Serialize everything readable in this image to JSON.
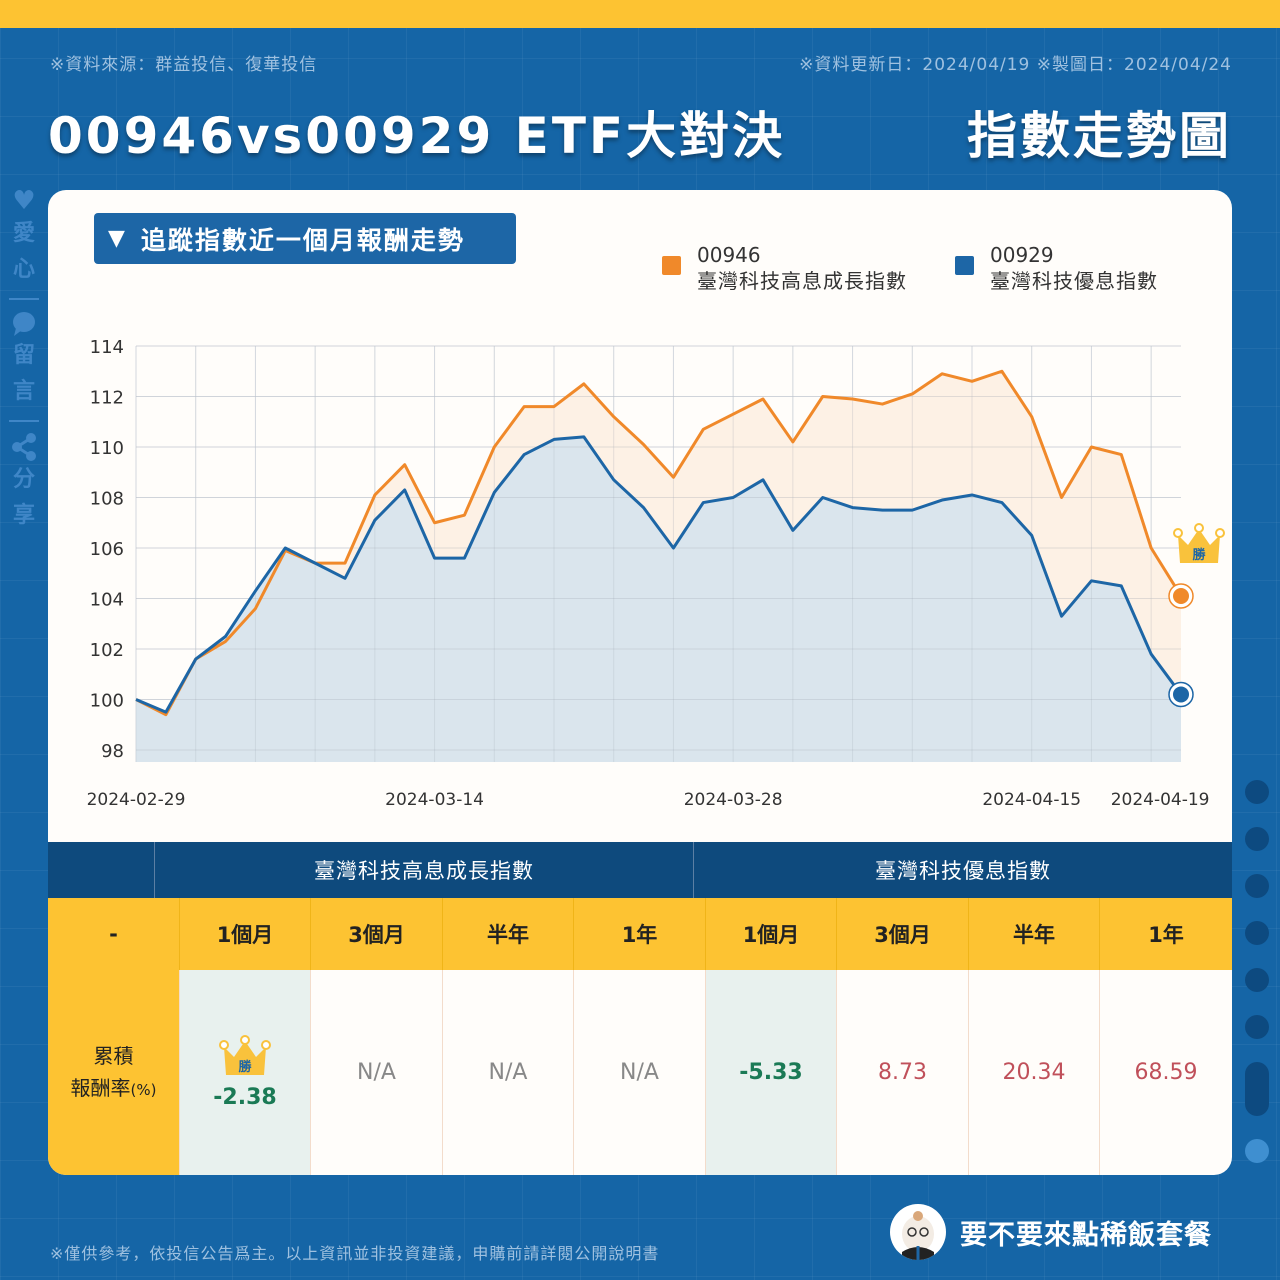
{
  "header": {
    "source": "※資料來源：群益投信、復華投信",
    "dates": "※資料更新日：2024/04/19  ※製圖日：2024/04/24",
    "title": "00946vs00929 ETF大對決",
    "subtitle": "指數走勢圖"
  },
  "side_nav": {
    "like": "愛心",
    "like_chars": [
      "愛",
      "心"
    ],
    "comment_chars": [
      "留",
      "言"
    ],
    "share_chars": [
      "分",
      "享"
    ]
  },
  "section": {
    "label": "追蹤指數近一個月報酬走勢",
    "icon": "triangle-down"
  },
  "legend": [
    {
      "code": "00946",
      "name": "臺灣科技高息成長指數",
      "color": "#f0892a"
    },
    {
      "code": "00929",
      "name": "臺灣科技優息指數",
      "color": "#1d66a6"
    }
  ],
  "winner_badge": "勝",
  "chart_data": {
    "type": "area",
    "title": "追蹤指數近一個月報酬走勢",
    "xlabel": "",
    "ylabel": "",
    "ylim": [
      98,
      114
    ],
    "yticks": [
      98,
      100,
      102,
      104,
      106,
      108,
      110,
      112,
      114
    ],
    "xtick_labels": [
      "2024-02-29",
      "2024-03-14",
      "2024-03-28",
      "2024-04-15",
      "2024-04-19"
    ],
    "grid": true,
    "legend_position": "top-right",
    "x_count": 36,
    "series": [
      {
        "name": "00946 臺灣科技高息成長指數",
        "color": "#f0892a",
        "values": [
          100.0,
          99.4,
          101.6,
          102.3,
          103.6,
          105.9,
          105.4,
          105.4,
          108.1,
          109.3,
          107.0,
          107.3,
          110.0,
          111.6,
          111.6,
          112.5,
          111.2,
          110.1,
          108.8,
          110.7,
          111.3,
          111.9,
          110.2,
          112.0,
          111.9,
          111.7,
          112.1,
          112.9,
          112.6,
          113.0,
          111.2,
          108.0,
          110.0,
          109.7,
          106.0,
          104.1
        ]
      },
      {
        "name": "00929 臺灣科技優息指數",
        "color": "#1d66a6",
        "values": [
          100.0,
          99.5,
          101.6,
          102.5,
          104.3,
          106.0,
          105.4,
          104.8,
          107.1,
          108.3,
          105.6,
          105.6,
          108.2,
          109.7,
          110.3,
          110.4,
          108.7,
          107.6,
          106.0,
          107.8,
          108.0,
          108.7,
          106.7,
          108.0,
          107.6,
          107.5,
          107.5,
          107.9,
          108.1,
          107.8,
          106.5,
          103.3,
          104.7,
          104.5,
          101.8,
          100.2
        ]
      }
    ]
  },
  "table": {
    "group_headers": [
      "臺灣科技高息成長指數",
      "臺灣科技優息指數"
    ],
    "corner": "-",
    "periods": [
      "1個月",
      "3個月",
      "半年",
      "1年",
      "1個月",
      "3個月",
      "半年",
      "1年"
    ],
    "row_label_line1": "累積",
    "row_label_line2": "報酬率",
    "row_label_unit": "(%)",
    "values": [
      "-2.38",
      "N/A",
      "N/A",
      "N/A",
      "-5.33",
      "8.73",
      "20.34",
      "68.59"
    ]
  },
  "footer": {
    "disclaimer": "※僅供參考，依投信公告爲主。以上資訊並非投資建議，申購前請詳閱公開說明書",
    "brand": "要不要來點稀飯套餐"
  }
}
